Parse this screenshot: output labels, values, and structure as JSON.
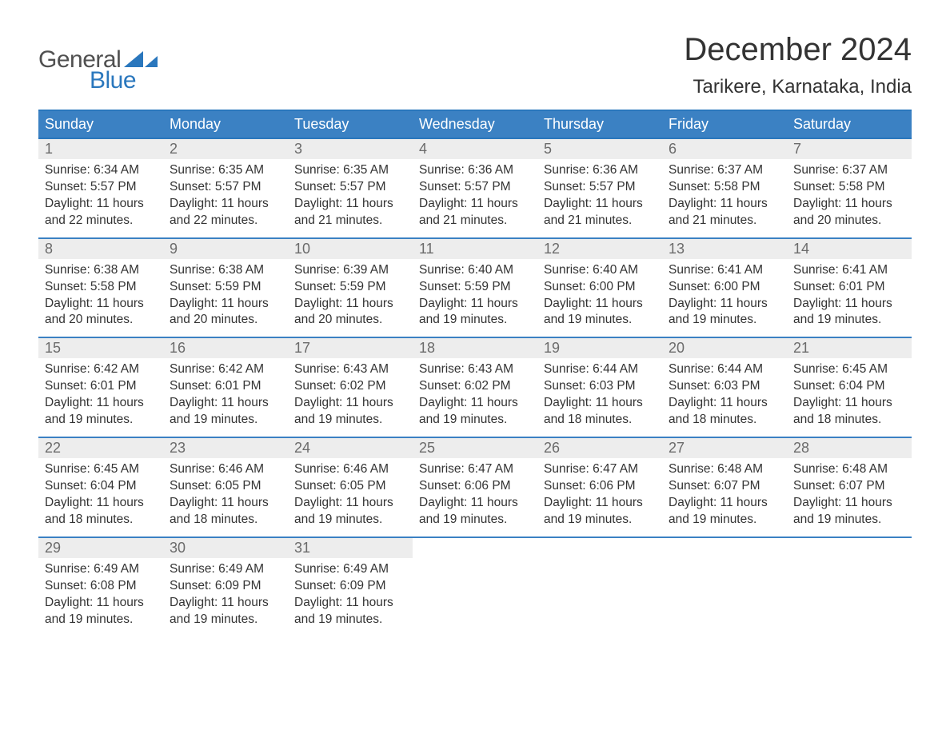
{
  "logo": {
    "line1": "General",
    "line2": "Blue",
    "tri_color": "#2a77bd",
    "text_gray": "#505050"
  },
  "title": {
    "month": "December 2024",
    "location": "Tarikere, Karnataka, India"
  },
  "colors": {
    "header_bg": "#3b81c3",
    "header_border": "#2a77bd",
    "daynum_bg": "#ededed",
    "daynum_color": "#6b6b6b",
    "text": "#333333",
    "background": "#ffffff"
  },
  "calendar": {
    "day_labels": [
      "Sunday",
      "Monday",
      "Tuesday",
      "Wednesday",
      "Thursday",
      "Friday",
      "Saturday"
    ],
    "weeks": [
      [
        {
          "n": "1",
          "sunrise": "Sunrise: 6:34 AM",
          "sunset": "Sunset: 5:57 PM",
          "d1": "Daylight: 11 hours",
          "d2": "and 22 minutes."
        },
        {
          "n": "2",
          "sunrise": "Sunrise: 6:35 AM",
          "sunset": "Sunset: 5:57 PM",
          "d1": "Daylight: 11 hours",
          "d2": "and 22 minutes."
        },
        {
          "n": "3",
          "sunrise": "Sunrise: 6:35 AM",
          "sunset": "Sunset: 5:57 PM",
          "d1": "Daylight: 11 hours",
          "d2": "and 21 minutes."
        },
        {
          "n": "4",
          "sunrise": "Sunrise: 6:36 AM",
          "sunset": "Sunset: 5:57 PM",
          "d1": "Daylight: 11 hours",
          "d2": "and 21 minutes."
        },
        {
          "n": "5",
          "sunrise": "Sunrise: 6:36 AM",
          "sunset": "Sunset: 5:57 PM",
          "d1": "Daylight: 11 hours",
          "d2": "and 21 minutes."
        },
        {
          "n": "6",
          "sunrise": "Sunrise: 6:37 AM",
          "sunset": "Sunset: 5:58 PM",
          "d1": "Daylight: 11 hours",
          "d2": "and 21 minutes."
        },
        {
          "n": "7",
          "sunrise": "Sunrise: 6:37 AM",
          "sunset": "Sunset: 5:58 PM",
          "d1": "Daylight: 11 hours",
          "d2": "and 20 minutes."
        }
      ],
      [
        {
          "n": "8",
          "sunrise": "Sunrise: 6:38 AM",
          "sunset": "Sunset: 5:58 PM",
          "d1": "Daylight: 11 hours",
          "d2": "and 20 minutes."
        },
        {
          "n": "9",
          "sunrise": "Sunrise: 6:38 AM",
          "sunset": "Sunset: 5:59 PM",
          "d1": "Daylight: 11 hours",
          "d2": "and 20 minutes."
        },
        {
          "n": "10",
          "sunrise": "Sunrise: 6:39 AM",
          "sunset": "Sunset: 5:59 PM",
          "d1": "Daylight: 11 hours",
          "d2": "and 20 minutes."
        },
        {
          "n": "11",
          "sunrise": "Sunrise: 6:40 AM",
          "sunset": "Sunset: 5:59 PM",
          "d1": "Daylight: 11 hours",
          "d2": "and 19 minutes."
        },
        {
          "n": "12",
          "sunrise": "Sunrise: 6:40 AM",
          "sunset": "Sunset: 6:00 PM",
          "d1": "Daylight: 11 hours",
          "d2": "and 19 minutes."
        },
        {
          "n": "13",
          "sunrise": "Sunrise: 6:41 AM",
          "sunset": "Sunset: 6:00 PM",
          "d1": "Daylight: 11 hours",
          "d2": "and 19 minutes."
        },
        {
          "n": "14",
          "sunrise": "Sunrise: 6:41 AM",
          "sunset": "Sunset: 6:01 PM",
          "d1": "Daylight: 11 hours",
          "d2": "and 19 minutes."
        }
      ],
      [
        {
          "n": "15",
          "sunrise": "Sunrise: 6:42 AM",
          "sunset": "Sunset: 6:01 PM",
          "d1": "Daylight: 11 hours",
          "d2": "and 19 minutes."
        },
        {
          "n": "16",
          "sunrise": "Sunrise: 6:42 AM",
          "sunset": "Sunset: 6:01 PM",
          "d1": "Daylight: 11 hours",
          "d2": "and 19 minutes."
        },
        {
          "n": "17",
          "sunrise": "Sunrise: 6:43 AM",
          "sunset": "Sunset: 6:02 PM",
          "d1": "Daylight: 11 hours",
          "d2": "and 19 minutes."
        },
        {
          "n": "18",
          "sunrise": "Sunrise: 6:43 AM",
          "sunset": "Sunset: 6:02 PM",
          "d1": "Daylight: 11 hours",
          "d2": "and 19 minutes."
        },
        {
          "n": "19",
          "sunrise": "Sunrise: 6:44 AM",
          "sunset": "Sunset: 6:03 PM",
          "d1": "Daylight: 11 hours",
          "d2": "and 18 minutes."
        },
        {
          "n": "20",
          "sunrise": "Sunrise: 6:44 AM",
          "sunset": "Sunset: 6:03 PM",
          "d1": "Daylight: 11 hours",
          "d2": "and 18 minutes."
        },
        {
          "n": "21",
          "sunrise": "Sunrise: 6:45 AM",
          "sunset": "Sunset: 6:04 PM",
          "d1": "Daylight: 11 hours",
          "d2": "and 18 minutes."
        }
      ],
      [
        {
          "n": "22",
          "sunrise": "Sunrise: 6:45 AM",
          "sunset": "Sunset: 6:04 PM",
          "d1": "Daylight: 11 hours",
          "d2": "and 18 minutes."
        },
        {
          "n": "23",
          "sunrise": "Sunrise: 6:46 AM",
          "sunset": "Sunset: 6:05 PM",
          "d1": "Daylight: 11 hours",
          "d2": "and 18 minutes."
        },
        {
          "n": "24",
          "sunrise": "Sunrise: 6:46 AM",
          "sunset": "Sunset: 6:05 PM",
          "d1": "Daylight: 11 hours",
          "d2": "and 19 minutes."
        },
        {
          "n": "25",
          "sunrise": "Sunrise: 6:47 AM",
          "sunset": "Sunset: 6:06 PM",
          "d1": "Daylight: 11 hours",
          "d2": "and 19 minutes."
        },
        {
          "n": "26",
          "sunrise": "Sunrise: 6:47 AM",
          "sunset": "Sunset: 6:06 PM",
          "d1": "Daylight: 11 hours",
          "d2": "and 19 minutes."
        },
        {
          "n": "27",
          "sunrise": "Sunrise: 6:48 AM",
          "sunset": "Sunset: 6:07 PM",
          "d1": "Daylight: 11 hours",
          "d2": "and 19 minutes."
        },
        {
          "n": "28",
          "sunrise": "Sunrise: 6:48 AM",
          "sunset": "Sunset: 6:07 PM",
          "d1": "Daylight: 11 hours",
          "d2": "and 19 minutes."
        }
      ],
      [
        {
          "n": "29",
          "sunrise": "Sunrise: 6:49 AM",
          "sunset": "Sunset: 6:08 PM",
          "d1": "Daylight: 11 hours",
          "d2": "and 19 minutes."
        },
        {
          "n": "30",
          "sunrise": "Sunrise: 6:49 AM",
          "sunset": "Sunset: 6:09 PM",
          "d1": "Daylight: 11 hours",
          "d2": "and 19 minutes."
        },
        {
          "n": "31",
          "sunrise": "Sunrise: 6:49 AM",
          "sunset": "Sunset: 6:09 PM",
          "d1": "Daylight: 11 hours",
          "d2": "and 19 minutes."
        },
        null,
        null,
        null,
        null
      ]
    ]
  }
}
